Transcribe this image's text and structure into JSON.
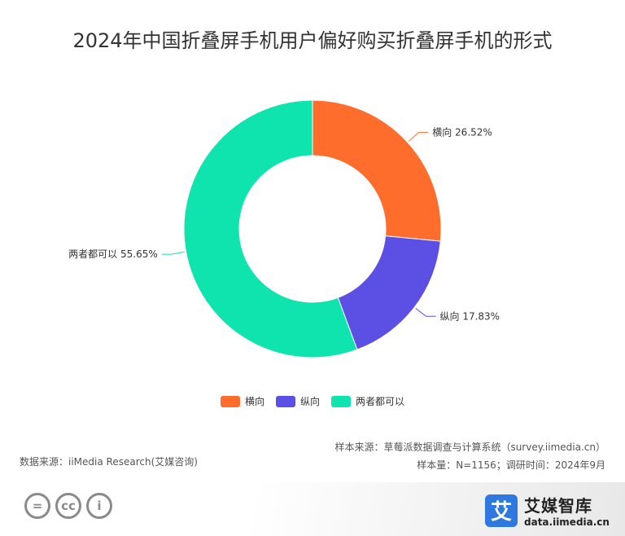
{
  "title": "2024年中国折叠屏手机用户偏好购买折叠屏手机的形式",
  "chart_data": {
    "type": "pie",
    "donut": true,
    "categories": [
      "横向",
      "纵向",
      "两者都可以"
    ],
    "values": [
      26.52,
      17.83,
      55.65
    ],
    "unit": "%",
    "colors": [
      "#ff6d2d",
      "#5b4fe4",
      "#0fe3ae"
    ],
    "data_labels": [
      "横向 26.52%",
      "纵向 17.83%",
      "两者都可以 55.65%"
    ],
    "legend_position": "bottom"
  },
  "legend": {
    "items": [
      {
        "label": "横向",
        "color": "#ff6d2d"
      },
      {
        "label": "纵向",
        "color": "#5b4fe4"
      },
      {
        "label": "两者都可以",
        "color": "#0fe3ae"
      }
    ]
  },
  "footer": {
    "source": "数据来源：iiMedia Research(艾媒咨询)",
    "sample_source": "样本来源：草莓派数据调查与计算系统（survey.iimedia.cn）",
    "sample_size": "样本量：N=1156；调研时间：2024年9月"
  },
  "license_icons": [
    "equals-icon",
    "cc-icon",
    "person-icon"
  ],
  "license_glyphs": [
    "=",
    "cc",
    "i"
  ],
  "brand": {
    "logo_char": "艾",
    "name": "艾媒智库",
    "url": "data.iimedia.cn"
  }
}
